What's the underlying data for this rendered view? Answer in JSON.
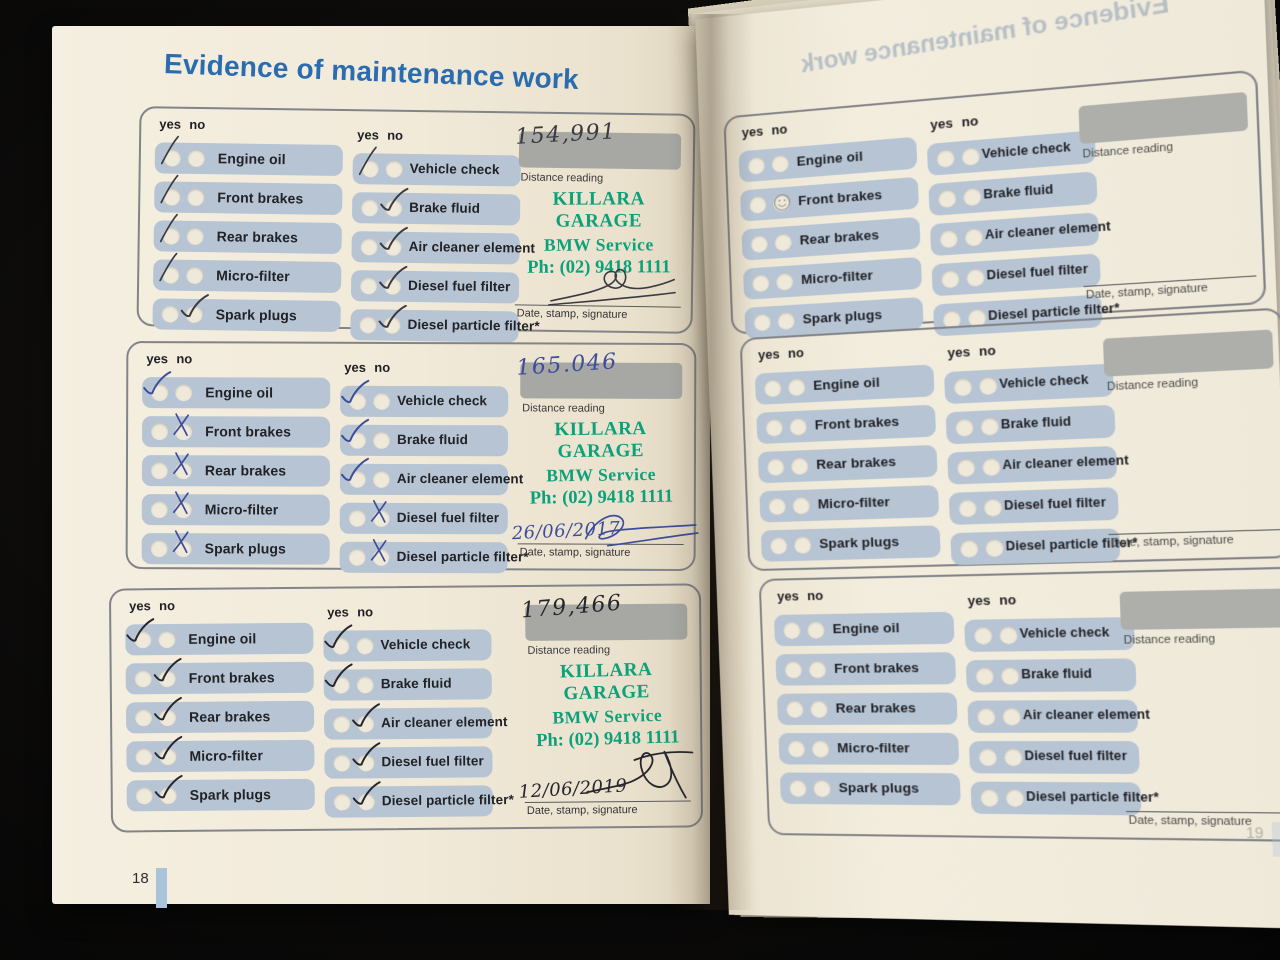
{
  "book": {
    "title": "Evidence of maintenance work",
    "showthrough_text": "Evidence of maintenance work",
    "left_page_number": "18",
    "right_page_number": "19",
    "title_color": "#2a6cb0"
  },
  "labels": {
    "yes": "yes",
    "no": "no",
    "distance_reading": "Distance reading",
    "date_stamp_signature": "Date, stamp, signature"
  },
  "service_items": {
    "column1": [
      "Engine oil",
      "Front brakes",
      "Rear brakes",
      "Micro-filter",
      "Spark plugs"
    ],
    "column2": [
      "Vehicle check",
      "Brake fluid",
      "Air cleaner element",
      "Diesel fuel filter",
      "Diesel particle filter*"
    ]
  },
  "garage_stamp": {
    "line1": "KILLARA GARAGE",
    "line2": "BMW Service",
    "line3": "Ph: (02) 9418 1111",
    "color": "#0ca17a"
  },
  "records": [
    {
      "label": "service-record-1",
      "distance_reading": "154,991",
      "date": "",
      "has_stamp": true,
      "signature": 1,
      "ink_color": "#3a3b42",
      "column1_marks": [
        {
          "answer": "yes",
          "glyph": "slash"
        },
        {
          "answer": "yes",
          "glyph": "slash"
        },
        {
          "answer": "yes",
          "glyph": "slash"
        },
        {
          "answer": "yes",
          "glyph": "slash"
        },
        {
          "answer": "no",
          "glyph": "tick"
        }
      ],
      "column2_marks": [
        {
          "answer": "yes",
          "glyph": "slash"
        },
        {
          "answer": "no",
          "glyph": "tick"
        },
        {
          "answer": "no",
          "glyph": "tick"
        },
        {
          "answer": "no",
          "glyph": "tick"
        },
        {
          "answer": "no",
          "glyph": "tick"
        }
      ]
    },
    {
      "label": "service-record-2",
      "distance_reading": "165.046",
      "date": "26/06/2017",
      "has_stamp": true,
      "signature": 2,
      "ink_color": "#3c4e9b",
      "column1_marks": [
        {
          "answer": "yes",
          "glyph": "tick"
        },
        {
          "answer": "no",
          "glyph": "x"
        },
        {
          "answer": "no",
          "glyph": "x"
        },
        {
          "answer": "no",
          "glyph": "x"
        },
        {
          "answer": "no",
          "glyph": "x"
        }
      ],
      "column2_marks": [
        {
          "answer": "yes",
          "glyph": "tick"
        },
        {
          "answer": "yes",
          "glyph": "tick"
        },
        {
          "answer": "yes",
          "glyph": "tick"
        },
        {
          "answer": "no",
          "glyph": "x"
        },
        {
          "answer": "no",
          "glyph": "x"
        }
      ]
    },
    {
      "label": "service-record-3",
      "distance_reading": "179,466",
      "date": "12/06/2019",
      "has_stamp": true,
      "signature": 3,
      "ink_color": "#26262c",
      "column1_marks": [
        {
          "answer": "yes",
          "glyph": "tick"
        },
        {
          "answer": "no",
          "glyph": "tick"
        },
        {
          "answer": "no",
          "glyph": "tick"
        },
        {
          "answer": "no",
          "glyph": "tick"
        },
        {
          "answer": "no",
          "glyph": "tick"
        }
      ],
      "column2_marks": [
        {
          "answer": "yes",
          "glyph": "tick"
        },
        {
          "answer": "yes",
          "glyph": "tick"
        },
        {
          "answer": "no",
          "glyph": "tick"
        },
        {
          "answer": "no",
          "glyph": "tick"
        },
        {
          "answer": "no",
          "glyph": "tick"
        }
      ]
    },
    {
      "label": "service-record-4",
      "distance_reading": "",
      "date": "",
      "has_stamp": false,
      "signature": 0,
      "ink_color": "#55555c",
      "column1_marks": [
        null,
        {
          "answer": "no",
          "glyph": "smiley"
        },
        null,
        null,
        null
      ],
      "column2_marks": [
        null,
        null,
        null,
        null,
        null
      ]
    },
    {
      "label": "service-record-5",
      "distance_reading": "",
      "date": "",
      "has_stamp": false,
      "signature": 0,
      "ink_color": "#55555c",
      "column1_marks": [
        null,
        null,
        null,
        null,
        null
      ],
      "column2_marks": [
        null,
        null,
        null,
        null,
        null
      ]
    },
    {
      "label": "service-record-6",
      "distance_reading": "",
      "date": "",
      "has_stamp": false,
      "signature": 0,
      "ink_color": "#55555c",
      "column1_marks": [
        null,
        null,
        null,
        null,
        null
      ],
      "column2_marks": [
        null,
        null,
        null,
        null,
        null
      ]
    }
  ]
}
